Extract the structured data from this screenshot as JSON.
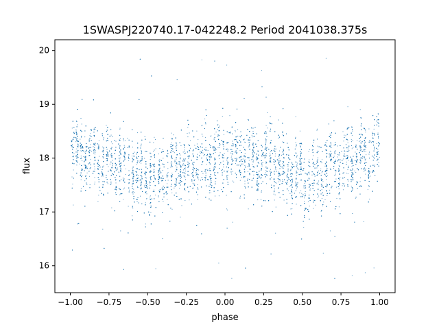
{
  "chart_data": {
    "type": "scatter",
    "title": "1SWASPJ220740.17-042248.2 Period 2041038.375s",
    "xlabel": "phase",
    "ylabel": "flux",
    "xlim": [
      -1.1,
      1.1
    ],
    "ylim": [
      15.5,
      20.2
    ],
    "xticks": [
      -1.0,
      -0.75,
      -0.5,
      -0.25,
      0.0,
      0.25,
      0.5,
      0.75,
      1.0
    ],
    "xtick_labels": [
      "−1.00",
      "−0.75",
      "−0.50",
      "−0.25",
      "0.00",
      "0.25",
      "0.50",
      "0.75",
      "1.00"
    ],
    "yticks": [
      16,
      17,
      18,
      19,
      20
    ],
    "ytick_labels": [
      "16",
      "17",
      "18",
      "19",
      "20"
    ],
    "grid": false,
    "marker_color": "#1f77b4",
    "x_range": [
      -1.0,
      1.0
    ],
    "trend": {
      "phase": [
        -1.0,
        -0.75,
        -0.5,
        -0.25,
        0.0,
        0.25,
        0.5,
        0.75,
        1.0
      ],
      "mean_flux": [
        18.1,
        17.95,
        17.65,
        17.85,
        18.05,
        17.95,
        17.65,
        17.85,
        18.1
      ]
    },
    "point_count": 9000
  }
}
